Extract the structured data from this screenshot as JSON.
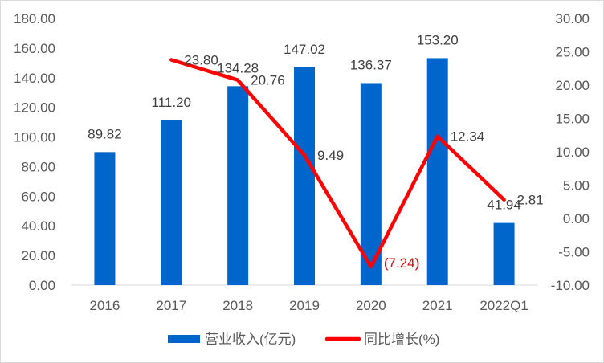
{
  "chart_data": {
    "type": "bar",
    "categories": [
      "2016",
      "2017",
      "2018",
      "2019",
      "2020",
      "2021",
      "2022Q1"
    ],
    "series": [
      {
        "name": "营业收入(亿元)",
        "kind": "bar",
        "axis": "left",
        "color": "#0066cc",
        "values": [
          89.82,
          111.2,
          134.28,
          147.02,
          136.37,
          153.2,
          41.94
        ],
        "labels": [
          "89.82",
          "111.20",
          "134.28",
          "147.02",
          "136.37",
          "153.20",
          "41.94"
        ]
      },
      {
        "name": "同比增长(%)",
        "kind": "line",
        "axis": "right",
        "color": "#ff0000",
        "values": [
          null,
          23.8,
          20.76,
          9.49,
          -7.24,
          12.34,
          2.81
        ],
        "labels": [
          "",
          "23.80",
          "20.76",
          "9.49",
          "(7.24)",
          "12.34",
          "2.81"
        ]
      }
    ],
    "ylim_left": [
      0,
      180
    ],
    "ylim_right": [
      -10,
      30
    ],
    "left_ticks": [
      "0.00",
      "20.00",
      "40.00",
      "60.00",
      "80.00",
      "100.00",
      "120.00",
      "140.00",
      "160.00",
      "180.00"
    ],
    "right_ticks": [
      "-10.00",
      "-5.00",
      "0.00",
      "5.00",
      "10.00",
      "15.00",
      "20.00",
      "25.00",
      "30.00"
    ],
    "grid": false,
    "legend_position": "bottom",
    "title": "",
    "xlabel": "",
    "ylabel": ""
  }
}
